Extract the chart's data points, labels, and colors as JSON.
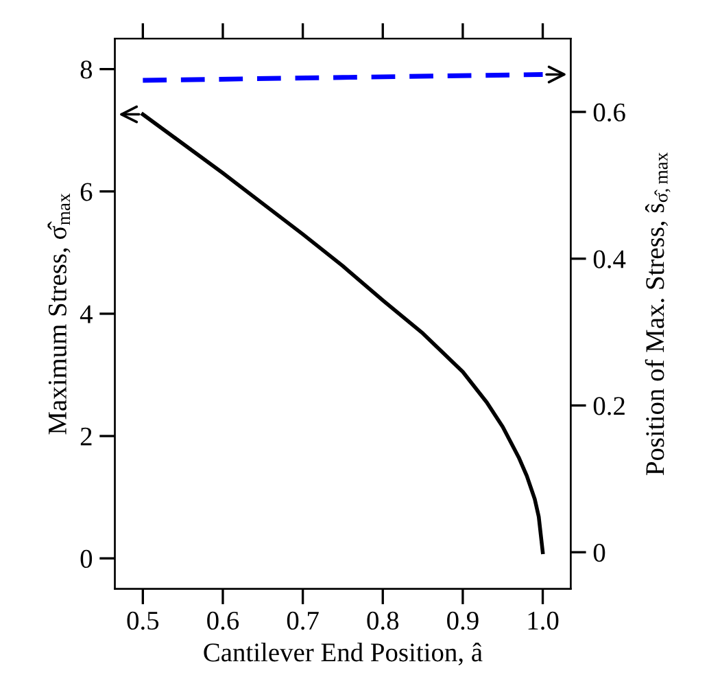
{
  "chart_data": {
    "type": "line",
    "xlabel": "Cantilever End Position, â",
    "ylabel": "Maximum Stress, σ̂$_{max}$",
    "y2label": "Position of Max. Stress, ŝ$_{σ̂,max}$",
    "series": [
      {
        "color": "#000000",
        "line_style": "solid",
        "x": [
          0.5,
          0.6,
          0.65,
          0.7,
          0.75,
          0.8,
          0.85,
          0.9,
          0.93,
          0.95,
          0.97,
          0.98,
          0.99,
          0.995,
          1.0
        ],
        "values": [
          7.26,
          6.3,
          5.8,
          5.3,
          4.78,
          4.22,
          3.68,
          3.05,
          2.55,
          2.15,
          1.65,
          1.35,
          0.97,
          0.68,
          0.1
        ]
      },
      {
        "color": "#0000ff",
        "line_style": "dashed",
        "axis": "y2",
        "x": [
          0.5,
          0.75,
          1.0
        ],
        "values": [
          0.643,
          0.647,
          0.651
        ]
      }
    ],
    "xlim": [
      0.465,
      1.035
    ],
    "xticks": [
      0.5,
      0.6,
      0.7,
      0.8,
      0.9,
      {
        "value": 1,
        "label": "1.0"
      }
    ],
    "ylim": [
      -0.5,
      8.5
    ],
    "yticks": [
      0,
      2,
      4,
      6,
      8
    ],
    "y2lim": [
      -0.05,
      0.7
    ],
    "y2ticks": [
      0,
      0.2,
      0.4,
      0.6
    ],
    "grid": false,
    "legend": false,
    "marker": "none"
  }
}
